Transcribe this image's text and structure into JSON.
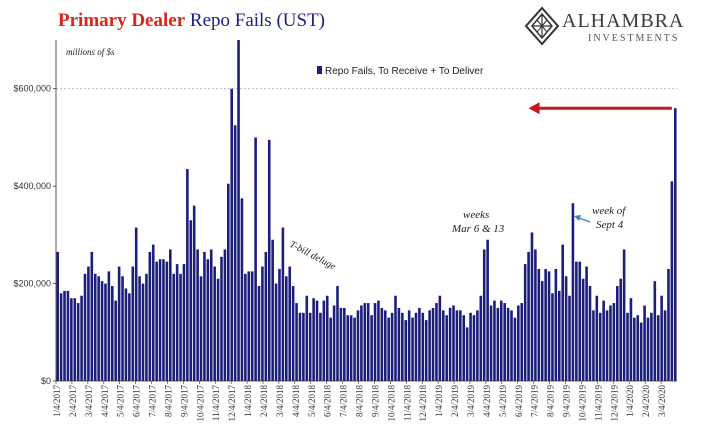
{
  "header": {
    "title_red": "Primary Dealer",
    "title_blue": "Repo Fails (UST)"
  },
  "logo": {
    "name": "ALHAMBRA",
    "sub": "INVESTMENTS"
  },
  "colors": {
    "bar": "#1b1f7a",
    "arrow": "#c8161b",
    "title_red": "#d9261c",
    "title_blue": "#1b1f7a"
  },
  "annotations": {
    "units": "millions of $s",
    "tbill": "T-bill deluge",
    "weeks_line1": "weeks",
    "weeks_line2": "Mar 6 & 13",
    "sept_line1": "week of",
    "sept_line2": "Sept 4"
  },
  "chart_data": {
    "type": "bar",
    "legend": "Repo Fails, To Receive + To Deliver",
    "legend_position": "top-center",
    "ylim": [
      0,
      700000
    ],
    "yticks": [
      {
        "value": 0,
        "label": "$0"
      },
      {
        "value": 200000,
        "label": "$200,000"
      },
      {
        "value": 400000,
        "label": "$400,000"
      },
      {
        "value": 600000,
        "label": "$600,000"
      }
    ],
    "gridlines": [
      600000
    ],
    "xtick_labels": [
      "1/4/2017",
      "2/4/2017",
      "3/4/2017",
      "4/4/2017",
      "5/4/2017",
      "6/4/2017",
      "7/4/2017",
      "8/4/2017",
      "9/4/2017",
      "10/4/2017",
      "11/4/2017",
      "12/4/2017",
      "1/4/2018",
      "2/4/2018",
      "3/4/2018",
      "4/4/2018",
      "5/4/2018",
      "6/4/2018",
      "7/4/2018",
      "8/4/2018",
      "9/4/2018",
      "10/4/2018",
      "11/4/2018",
      "12/4/2018",
      "1/4/2019",
      "2/4/2019",
      "3/4/2019",
      "4/4/2019",
      "5/4/2019",
      "6/4/2019",
      "7/4/2019",
      "8/4/2019",
      "9/4/2019",
      "10/4/2019",
      "11/4/2019",
      "12/4/2019",
      "1/4/2020",
      "2/4/2020",
      "3/4/2020"
    ],
    "values": [
      265000,
      180000,
      185000,
      185000,
      170000,
      170000,
      160000,
      175000,
      220000,
      235000,
      265000,
      220000,
      215000,
      205000,
      200000,
      225000,
      195000,
      165000,
      235000,
      215000,
      190000,
      180000,
      235000,
      315000,
      215000,
      200000,
      220000,
      265000,
      280000,
      245000,
      250000,
      250000,
      245000,
      270000,
      220000,
      240000,
      220000,
      240000,
      435000,
      330000,
      360000,
      270000,
      215000,
      265000,
      250000,
      270000,
      235000,
      210000,
      255000,
      270000,
      405000,
      600000,
      525000,
      700000,
      375000,
      220000,
      225000,
      225000,
      500000,
      195000,
      235000,
      265000,
      495000,
      290000,
      200000,
      230000,
      315000,
      215000,
      235000,
      195000,
      160000,
      140000,
      140000,
      175000,
      140000,
      170000,
      165000,
      140000,
      165000,
      175000,
      130000,
      155000,
      195000,
      150000,
      150000,
      135000,
      135000,
      130000,
      145000,
      155000,
      160000,
      160000,
      135000,
      160000,
      165000,
      150000,
      145000,
      130000,
      140000,
      175000,
      150000,
      140000,
      125000,
      145000,
      130000,
      140000,
      150000,
      140000,
      125000,
      145000,
      150000,
      160000,
      175000,
      145000,
      135000,
      150000,
      155000,
      145000,
      145000,
      135000,
      110000,
      140000,
      135000,
      145000,
      175000,
      270000,
      290000,
      155000,
      165000,
      150000,
      165000,
      160000,
      150000,
      145000,
      130000,
      155000,
      160000,
      240000,
      265000,
      305000,
      270000,
      230000,
      205000,
      230000,
      225000,
      180000,
      230000,
      185000,
      280000,
      215000,
      175000,
      365000,
      245000,
      245000,
      210000,
      235000,
      195000,
      145000,
      175000,
      140000,
      165000,
      145000,
      155000,
      160000,
      195000,
      210000,
      270000,
      140000,
      170000,
      130000,
      135000,
      120000,
      155000,
      130000,
      140000,
      205000,
      135000,
      175000,
      145000,
      230000,
      410000,
      560000
    ],
    "annotation_arrow": {
      "from_x_index": 180,
      "to_x_index": 138,
      "y": 560000
    }
  }
}
